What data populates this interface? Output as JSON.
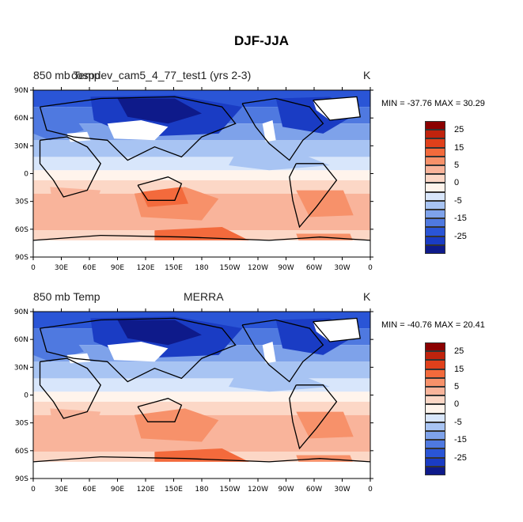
{
  "figure": {
    "title": "DJF-JJA"
  },
  "panels": [
    {
      "id": "top",
      "title_left": "850 mb Temp",
      "title_center": "cospdev_cam5_4_77_test1 (yrs 2-3)",
      "units": "K",
      "min_label": "MIN = -37.76",
      "max_label": "MAX = 30.29"
    },
    {
      "id": "bottom",
      "title_left": "850 mb Temp",
      "title_center": "MERRA",
      "units": "K",
      "min_label": "MIN = -40.76",
      "max_label": "MAX = 20.41"
    }
  ],
  "axes": {
    "lat_labels": [
      "90N",
      "60N",
      "30N",
      "0",
      "30S",
      "60S",
      "90S"
    ],
    "lon_labels": [
      "0",
      "30E",
      "60E",
      "90E",
      "120E",
      "150E",
      "180",
      "150W",
      "120W",
      "90W",
      "60W",
      "30W",
      "0"
    ]
  },
  "colorbar": {
    "labels": [
      "25",
      "15",
      "5",
      "0",
      "-5",
      "-15",
      "-25"
    ],
    "colors": [
      "#8b0000",
      "#c0230d",
      "#e0401b",
      "#f36a3c",
      "#f7916a",
      "#f9b49b",
      "#fcd7c6",
      "#fff4ec",
      "#d8e6fb",
      "#a8c4f3",
      "#7ea2ea",
      "#4f79e0",
      "#2a55d6",
      "#1a3cc4",
      "#0e1a8a"
    ]
  }
}
